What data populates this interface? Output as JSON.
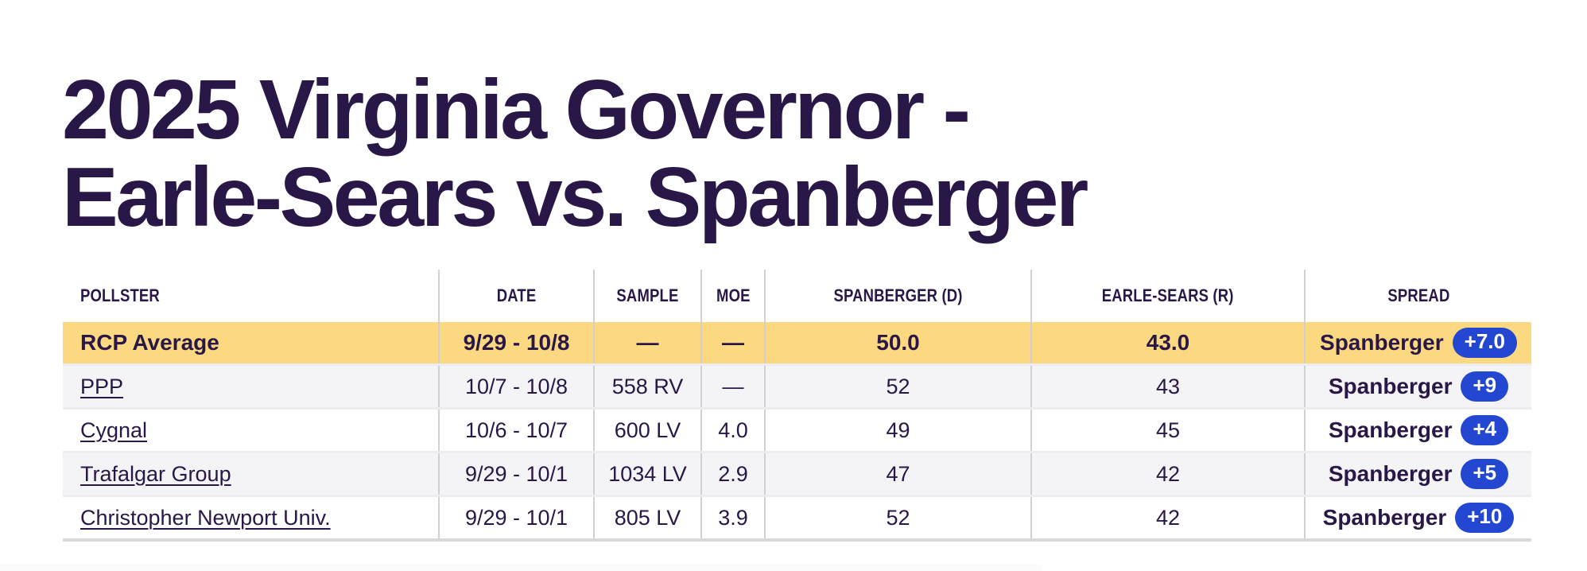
{
  "header": {
    "title": "2025 Virginia Governor - Earle-Sears vs. Spanberger",
    "title_line1": "2025 Virginia Governor -",
    "title_line2": "Earle-Sears vs. Spanberger"
  },
  "colors": {
    "text_purple": "#281747",
    "highlight_yellow": "#fcd981",
    "badge_blue": "#2347d0",
    "stripe_gray": "#f4f4f6",
    "column_divider": "#cfcfd4",
    "table_bottom_border": "#d9d9d9"
  },
  "table": {
    "columns": [
      {
        "key": "pollster",
        "label": "POLLSTER"
      },
      {
        "key": "date",
        "label": "DATE"
      },
      {
        "key": "sample",
        "label": "SAMPLE"
      },
      {
        "key": "moe",
        "label": "MOE"
      },
      {
        "key": "dem",
        "label": "SPANBERGER (D)"
      },
      {
        "key": "rep",
        "label": "EARLE-SEARS (R)"
      },
      {
        "key": "spread",
        "label": "SPREAD"
      }
    ],
    "rows": [
      {
        "pollster": "RCP Average",
        "is_link": false,
        "highlight": true,
        "date": "9/29 - 10/8",
        "sample": "—",
        "moe": "—",
        "dem": "50.0",
        "rep": "43.0",
        "spread_name": "Spanberger",
        "spread_value": "+7.0"
      },
      {
        "pollster": "PPP",
        "is_link": true,
        "highlight": false,
        "date": "10/7 - 10/8",
        "sample": "558 RV",
        "moe": "—",
        "dem": "52",
        "rep": "43",
        "spread_name": "Spanberger",
        "spread_value": "+9"
      },
      {
        "pollster": "Cygnal",
        "is_link": true,
        "highlight": false,
        "date": "10/6 - 10/7",
        "sample": "600 LV",
        "moe": "4.0",
        "dem": "49",
        "rep": "45",
        "spread_name": "Spanberger",
        "spread_value": "+4"
      },
      {
        "pollster": "Trafalgar Group",
        "is_link": true,
        "highlight": false,
        "date": "9/29 - 10/1",
        "sample": "1034 LV",
        "moe": "2.9",
        "dem": "47",
        "rep": "42",
        "spread_name": "Spanberger",
        "spread_value": "+5"
      },
      {
        "pollster": "Christopher Newport Univ.",
        "is_link": true,
        "highlight": false,
        "date": "9/29 - 10/1",
        "sample": "805 LV",
        "moe": "3.9",
        "dem": "52",
        "rep": "42",
        "spread_name": "Spanberger",
        "spread_value": "+10"
      }
    ]
  }
}
